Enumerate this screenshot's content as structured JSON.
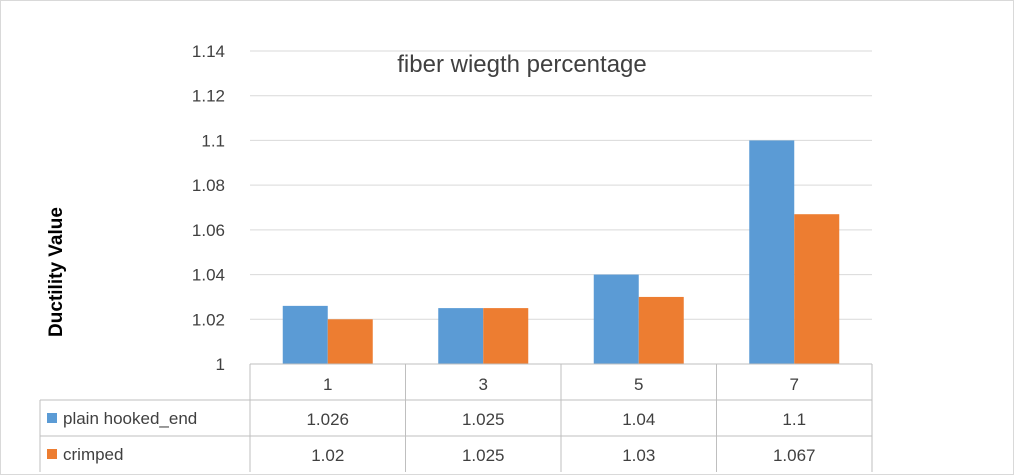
{
  "chart_data": {
    "type": "bar",
    "title": "fiber wiegth percentage",
    "xlabel": "",
    "ylabel": "Ductility Value",
    "ylim": [
      1,
      1.14
    ],
    "ytick_step": 0.02,
    "yticks": [
      "1",
      "1.02",
      "1.04",
      "1.06",
      "1.08",
      "1.1",
      "1.12",
      "1.14"
    ],
    "categories": [
      "1",
      "3",
      "5",
      "7"
    ],
    "series": [
      {
        "name": "plain hooked_end",
        "color": "#5B9BD5",
        "values": [
          1.026,
          1.025,
          1.04,
          1.1
        ],
        "labels": [
          "1.026",
          "1.025",
          "1.04",
          "1.1"
        ]
      },
      {
        "name": "crimped",
        "color": "#ED7D31",
        "values": [
          1.02,
          1.025,
          1.03,
          1.067
        ],
        "labels": [
          "1.02",
          "1.025",
          "1.03",
          "1.067"
        ]
      }
    ],
    "grid": true,
    "legend": "data-table"
  }
}
